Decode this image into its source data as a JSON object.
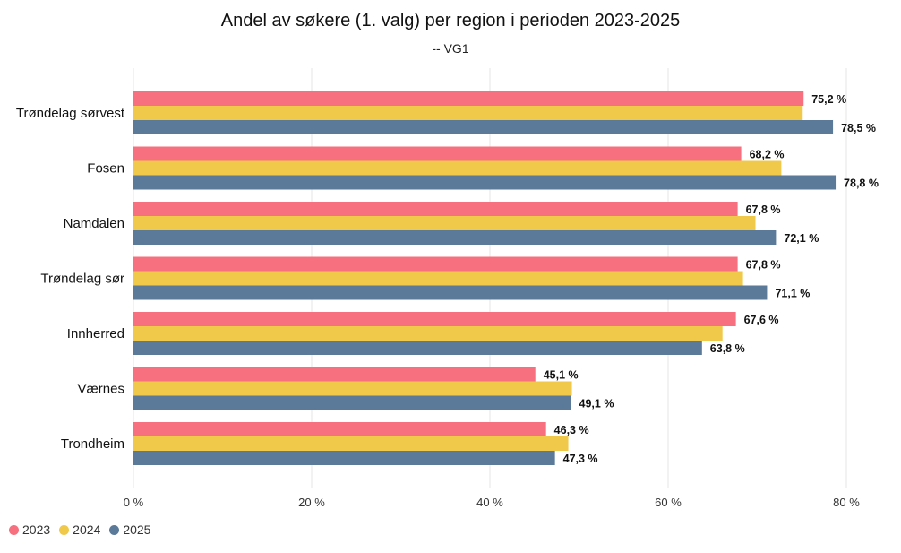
{
  "chart_data": {
    "type": "bar",
    "orientation": "horizontal",
    "title": "Andel av søkere (1. valg) per region i perioden 2023-2025",
    "subtitle": "-- VG1",
    "categories": [
      "Trøndelag sørvest",
      "Fosen",
      "Namdalen",
      "Trøndelag sør",
      "Innherred",
      "Værnes",
      "Trondheim"
    ],
    "series": [
      {
        "name": "2023",
        "color": "#f7707f",
        "values": [
          75.2,
          68.2,
          67.8,
          67.8,
          67.6,
          45.1,
          46.3
        ],
        "labels": [
          "75,2 %",
          "68,2 %",
          "67,8 %",
          "67,8 %",
          "67,6 %",
          "45,1 %",
          "46,3 %"
        ]
      },
      {
        "name": "2024",
        "color": "#f0c94a",
        "values": [
          75.1,
          72.7,
          69.8,
          68.4,
          66.1,
          49.2,
          48.8
        ],
        "labels": [
          "",
          "",
          "",
          "",
          "",
          "",
          ""
        ]
      },
      {
        "name": "2025",
        "color": "#5b7a99",
        "values": [
          78.5,
          78.8,
          72.1,
          71.1,
          63.8,
          49.1,
          47.3
        ],
        "labels": [
          "78,5 %",
          "78,8 %",
          "72,1 %",
          "71,1 %",
          "63,8 %",
          "49,1 %",
          "47,3 %"
        ]
      }
    ],
    "xlim": [
      0,
      80
    ],
    "ticks": [
      0,
      20,
      40,
      60,
      80
    ],
    "tick_labels": [
      "0 %",
      "20 %",
      "40 %",
      "60 %",
      "80 %"
    ],
    "grid": true,
    "legend_position": "bottom-left"
  }
}
